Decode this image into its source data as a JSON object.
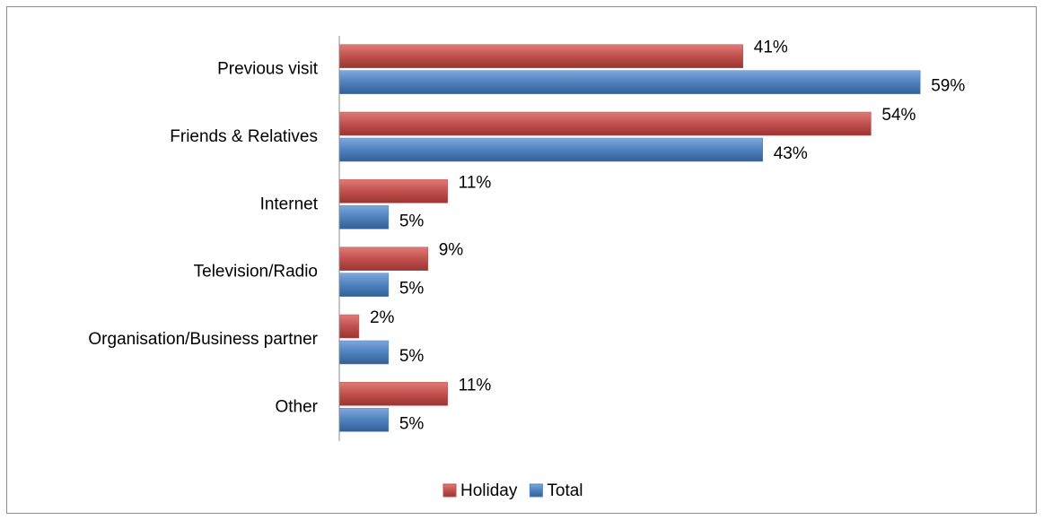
{
  "chart_data": {
    "type": "bar",
    "orientation": "horizontal",
    "categories": [
      "Previous visit",
      "Friends & Relatives",
      "Internet",
      "Television/Radio",
      "Organisation/Business partner",
      "Other"
    ],
    "series": [
      {
        "name": "Holiday",
        "color": "#c0504d",
        "values": [
          41,
          54,
          11,
          9,
          2,
          11
        ],
        "value_labels": [
          "41%",
          "54%",
          "11%",
          "9%",
          "2%",
          "11%"
        ]
      },
      {
        "name": "Total",
        "color": "#4f81bd",
        "values": [
          59,
          43,
          5,
          5,
          5,
          5
        ],
        "value_labels": [
          "59%",
          "43%",
          "5%",
          "5%",
          "5%",
          "5%"
        ]
      }
    ],
    "xlim": [
      0,
      70
    ],
    "legend": "bottom"
  }
}
